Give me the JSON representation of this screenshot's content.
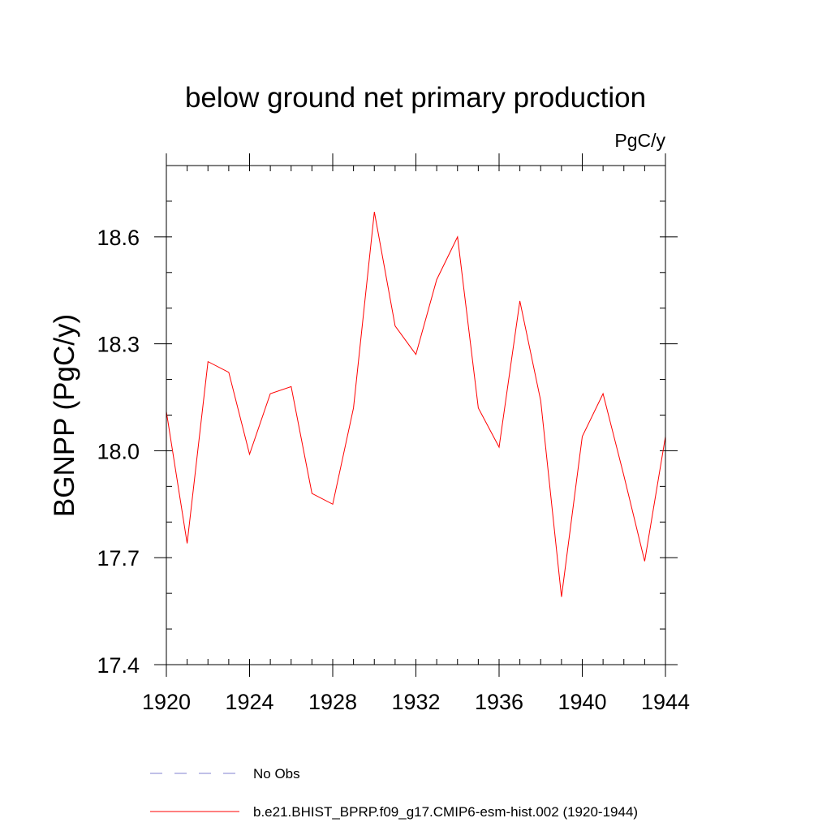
{
  "chart_data": {
    "type": "line",
    "title": "below ground net primary production",
    "units_label": "PgC/y",
    "ylabel": "BGNPP  (PgC/y)",
    "xlabel": "",
    "xlim": [
      1920,
      1944
    ],
    "ylim": [
      17.4,
      18.8
    ],
    "x_ticks": [
      1920,
      1924,
      1928,
      1932,
      1936,
      1940,
      1944
    ],
    "x_tick_labels": [
      "1920",
      "1924",
      "1928",
      "1932",
      "1936",
      "1940",
      "1944"
    ],
    "x_minor_step": 1,
    "y_ticks": [
      17.4,
      17.7,
      18.0,
      18.3,
      18.6
    ],
    "y_tick_labels": [
      "17.4",
      "17.7",
      "18.0",
      "18.3",
      "18.6"
    ],
    "y_minor_step": 0.1,
    "series": [
      {
        "name": "b.e21.BHIST_BPRP.f09_g17.CMIP6-esm-hist.002 (1920-1944)",
        "color": "#ff0000",
        "dash": "solid",
        "x": [
          1920,
          1921,
          1922,
          1923,
          1924,
          1925,
          1926,
          1927,
          1928,
          1929,
          1930,
          1931,
          1932,
          1933,
          1934,
          1935,
          1936,
          1937,
          1938,
          1939,
          1940,
          1941,
          1942,
          1943,
          1944
        ],
        "y": [
          18.11,
          17.74,
          18.25,
          18.22,
          17.99,
          18.16,
          18.18,
          17.88,
          17.85,
          18.12,
          18.67,
          18.35,
          18.27,
          18.48,
          18.6,
          18.12,
          18.01,
          18.42,
          18.14,
          17.59,
          18.04,
          18.16,
          17.93,
          17.69,
          18.04
        ]
      }
    ],
    "legend": [
      {
        "label": "No Obs",
        "color": "#8080d0",
        "dash": "dashed"
      },
      {
        "label": "b.e21.BHIST_BPRP.f09_g17.CMIP6-esm-hist.002 (1920-1944)",
        "color": "#ff0000",
        "dash": "solid"
      }
    ],
    "legend_position": "bottom"
  }
}
